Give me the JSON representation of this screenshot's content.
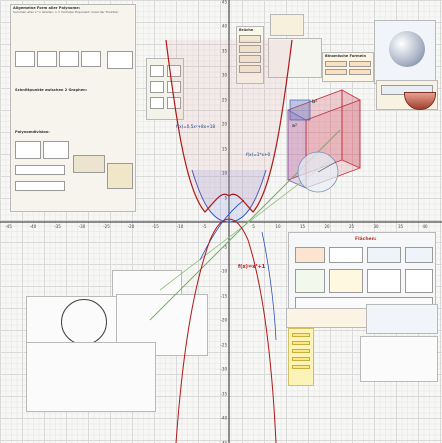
{
  "posters": {
    "polynomials_title": "Allgemeine Form aller Polynome:",
    "polynomials_sub": "Summen aller x^n Glieder; n = höchster Exponent: Grad der Funktion",
    "schnittpunkte_title": "Schnittpunkte zwischen 2 Graphen:",
    "polynomdivision_title": "Polynomdivision:",
    "brueche_title": "Brüche",
    "binom_title": "Binomische Formeln",
    "flaechen_title": "Flächen:"
  },
  "formulas": {
    "upper": "f(x)=0,5x²+8x+18",
    "lower": "f(x)=x³+1",
    "right": "f(x)=1*x+0",
    "cube_a": "a²",
    "cube_b": "b²"
  },
  "axis": {
    "x_ticks": [
      "-45",
      "-40",
      "-35",
      "-30",
      "-25",
      "-20",
      "-15",
      "-10",
      "-5",
      "5",
      "10",
      "15",
      "20",
      "25",
      "30",
      "35",
      "40",
      "45"
    ],
    "y_ticks_pos": [
      "45",
      "40",
      "35",
      "30",
      "25",
      "20",
      "15",
      "10",
      "5"
    ],
    "y_ticks_neg": [
      "-5",
      "-10",
      "-15",
      "-20",
      "-25",
      "-30",
      "-35",
      "-40",
      "-45"
    ]
  },
  "colors": {
    "curve_red": "#b01818",
    "cube_red": "#d03040",
    "line_green": "#70b060",
    "curve_blue": "#3050c0"
  }
}
